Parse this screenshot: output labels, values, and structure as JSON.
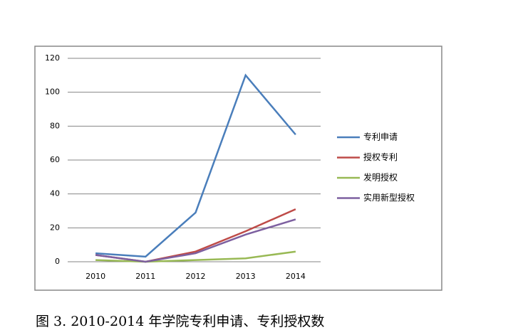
{
  "chart_data": {
    "type": "line",
    "categories": [
      "2010",
      "2011",
      "2012",
      "2013",
      "2014"
    ],
    "series": [
      {
        "name": "专利申请",
        "color": "#4a7ebb",
        "values": [
          5,
          3,
          29,
          110,
          75
        ]
      },
      {
        "name": "授权专利",
        "color": "#be4b48",
        "values": [
          4,
          0,
          6,
          18,
          31
        ]
      },
      {
        "name": "发明授权",
        "color": "#98b954",
        "values": [
          1,
          0,
          1,
          2,
          6
        ]
      },
      {
        "name": "实用新型授权",
        "color": "#7d60a0",
        "values": [
          4,
          0,
          5,
          16,
          25
        ]
      }
    ],
    "ylim": [
      0,
      120
    ],
    "yticks": [
      0,
      20,
      40,
      60,
      80,
      100,
      120
    ],
    "grid": true,
    "legend": "right",
    "caption": "图 3. 2010-2014 年学院专利申请、专利授权数"
  }
}
